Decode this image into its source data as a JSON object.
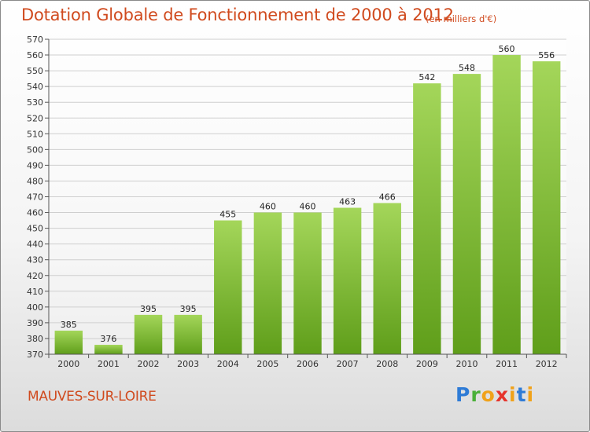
{
  "header": {
    "title": "Dotation Globale de Fonctionnement de 2000 à 2012",
    "unit": "(en milliers d'€)"
  },
  "footer": {
    "commune": "MAUVES-SUR-LOIRE",
    "logo": [
      "P",
      "r",
      "o",
      "x",
      "i",
      "t",
      "i"
    ]
  },
  "colors": {
    "bar_top": "#a4d65a",
    "bar_bottom": "#5f9e1a",
    "title": "#d04a1e"
  },
  "chart_data": {
    "type": "bar",
    "title": "Dotation Globale de Fonctionnement de 2000 à 2012",
    "xlabel": "",
    "ylabel": "",
    "categories": [
      "2000",
      "2001",
      "2002",
      "2003",
      "2004",
      "2005",
      "2006",
      "2007",
      "2008",
      "2009",
      "2010",
      "2011",
      "2012"
    ],
    "values": [
      385,
      376,
      395,
      395,
      455,
      460,
      460,
      463,
      466,
      542,
      548,
      560,
      556
    ],
    "ylim": [
      370,
      570
    ],
    "ytick_step": 10,
    "grid": true
  }
}
